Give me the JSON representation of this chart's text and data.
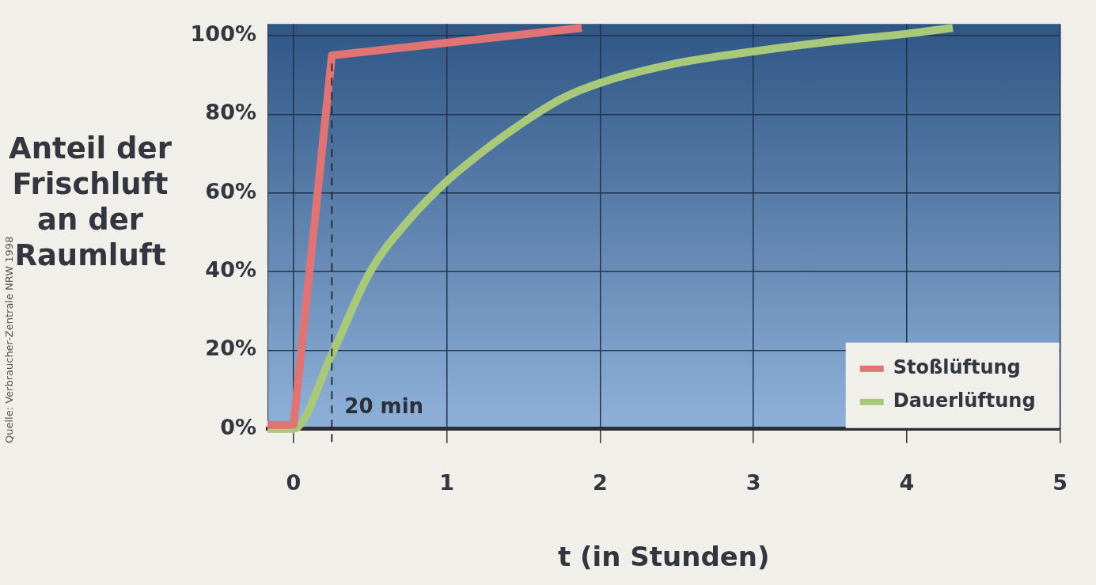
{
  "chart_data": {
    "type": "line",
    "xlabel": "t (in Stunden)",
    "ylabel": "Anteil der Frischluft an der Raumluft",
    "xlim": [
      -0.17,
      5
    ],
    "xticks": [
      0,
      1,
      2,
      3,
      4,
      5
    ],
    "ylim": [
      0,
      103
    ],
    "yticks": [
      {
        "value": 0,
        "label": "0%"
      },
      {
        "value": 20,
        "label": "20%"
      },
      {
        "value": 40,
        "label": "40%"
      },
      {
        "value": 60,
        "label": "60%"
      },
      {
        "value": 80,
        "label": "80%"
      },
      {
        "value": 100,
        "label": "100%"
      }
    ],
    "grid": true,
    "legend": "bottom right",
    "marker": "none",
    "line_style": "solid",
    "ref_lines": [
      {
        "axis": "x",
        "value": 0.25,
        "label": "20 min",
        "line_style": "dashed",
        "color": "#2a2f3a"
      }
    ],
    "annotations": [
      "Quelle: Verbraucher-Zentrale NRW 1998"
    ],
    "series": [
      {
        "name": "Stoßlüftung",
        "color": "#e07373",
        "x": [
          -0.17,
          0,
          0.25,
          1.88
        ],
        "values": [
          1,
          1,
          95,
          102
        ]
      },
      {
        "name": "Dauerlüftung",
        "color": "#a8c87a",
        "x": [
          -0.17,
          0,
          0.25,
          0.5,
          0.75,
          1,
          1.25,
          1.5,
          1.75,
          2,
          2.5,
          3,
          3.5,
          4,
          4.3
        ],
        "values": [
          0,
          0,
          19,
          40,
          53,
          63,
          71,
          78,
          84,
          88,
          93,
          96,
          98.5,
          100.5,
          102
        ]
      }
    ]
  }
}
